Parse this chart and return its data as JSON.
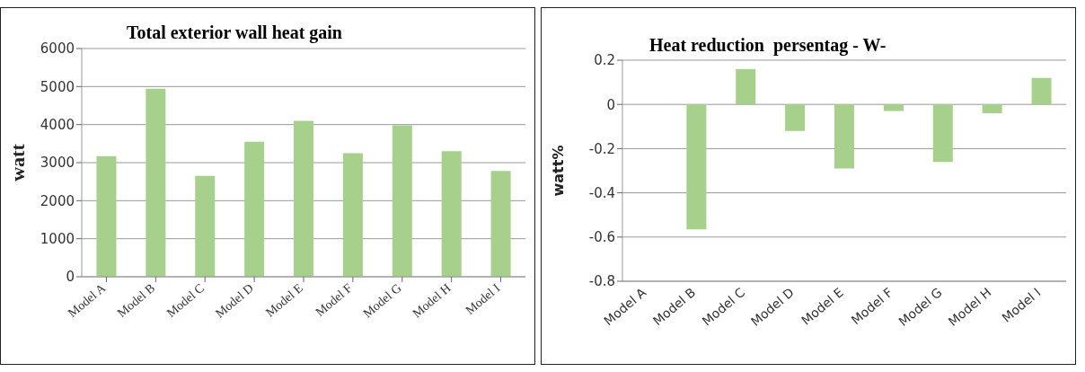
{
  "chart_data": [
    {
      "type": "bar",
      "title": "Total exterior wall heat gain",
      "ylabel": "watt",
      "categories": [
        "Model A",
        "Model B",
        "Model C",
        "Model D",
        "Model E",
        "Model F",
        "Model G",
        "Model H",
        "Model I"
      ],
      "values": [
        3170,
        4940,
        2650,
        3550,
        4100,
        3250,
        3980,
        3300,
        2780
      ],
      "color": "#a6d08c",
      "ylim": [
        0,
        6000
      ],
      "yticks": [
        0,
        1000,
        2000,
        3000,
        4000,
        5000,
        6000
      ],
      "grid": "y"
    },
    {
      "type": "bar",
      "title": "Heat reduction  persentag - W-",
      "ylabel": "watt%",
      "categories": [
        "Model A",
        "Model B",
        "Model C",
        "Model D",
        "Model E",
        "Model F",
        "Model G",
        "Model H",
        "Model I"
      ],
      "values": [
        0,
        -0.565,
        0.16,
        -0.12,
        -0.29,
        -0.03,
        -0.26,
        -0.04,
        0.12
      ],
      "color": "#a6d08c",
      "ylim": [
        -0.8,
        0.2
      ],
      "yticks": [
        -0.8,
        -0.6,
        -0.4,
        -0.2,
        0,
        0.2
      ],
      "grid": "y"
    }
  ]
}
